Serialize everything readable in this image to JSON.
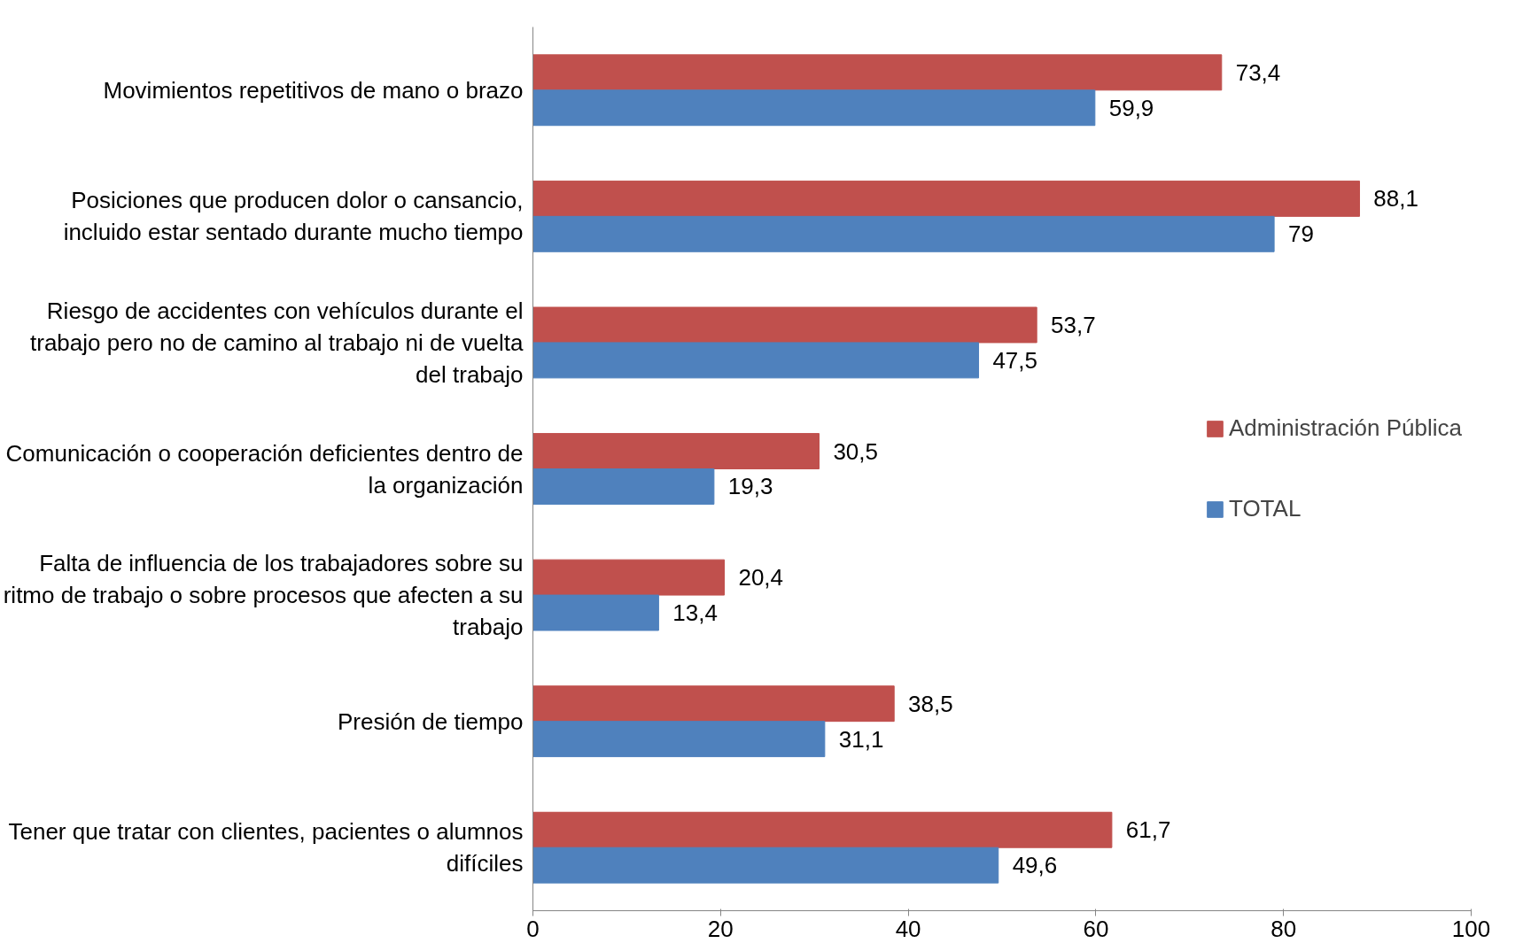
{
  "chart_data": {
    "type": "bar",
    "orientation": "horizontal",
    "categories": [
      "Movimientos repetitivos de mano o brazo",
      "Posiciones que producen dolor o cansancio, incluido estar sentado durante mucho tiempo",
      "Riesgo de accidentes con vehículos durante el trabajo pero no de camino al trabajo ni de vuelta del trabajo",
      "Comunicación o cooperación deficientes dentro de la organización",
      "Falta de influencia de los trabajadores sobre su ritmo de trabajo o sobre procesos que afecten a su trabajo",
      "Presión de tiempo",
      "Tener que tratar con clientes, pacientes o alumnos difíciles"
    ],
    "series": [
      {
        "name": "Administración Pública",
        "color": "#c0504d",
        "values": [
          73.4,
          88.1,
          53.7,
          30.5,
          20.4,
          38.5,
          61.7
        ],
        "value_labels": [
          "73,4",
          "88,1",
          "53,7",
          "30,5",
          "20,4",
          "38,5",
          "61,7"
        ]
      },
      {
        "name": "TOTAL",
        "color": "#4f81bd",
        "values": [
          59.9,
          79,
          47.5,
          19.3,
          13.4,
          31.1,
          49.6
        ],
        "value_labels": [
          "59,9",
          "79",
          "47,5",
          "19,3",
          "13,4",
          "31,1",
          "49,6"
        ]
      }
    ],
    "xlim": [
      0,
      100
    ],
    "xticks": [
      0,
      20,
      40,
      60,
      80,
      100
    ],
    "grid": false,
    "legend": "right"
  }
}
